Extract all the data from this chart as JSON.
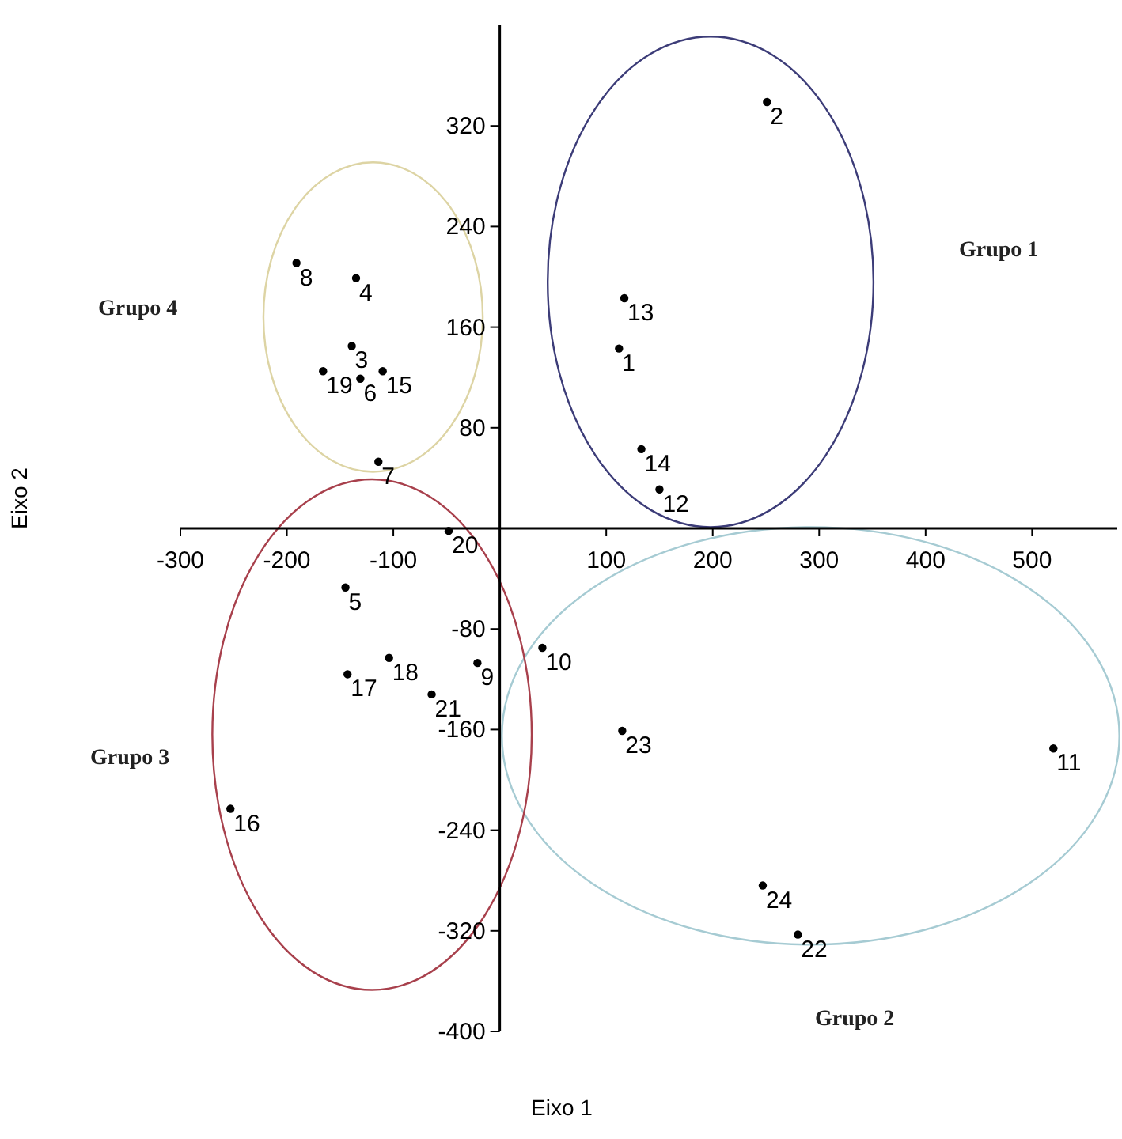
{
  "chart_data": {
    "type": "scatter",
    "xlabel": "Eixo 1",
    "xlim": [
      -300,
      580
    ],
    "xticks": [
      -300,
      -200,
      -100,
      100,
      200,
      300,
      400,
      500
    ],
    "ylim": [
      -400,
      400
    ],
    "yticks": [
      320,
      240,
      160,
      80,
      -80,
      -160,
      -240,
      -320,
      -400
    ],
    "marker": "circle",
    "grid": false,
    "annotations": [
      "Grupo 1",
      "Grupo 2",
      "Grupo 3",
      "Grupo 4",
      "Eixo 2"
    ],
    "series": [
      {
        "name": "1",
        "color": "#000000",
        "x": [
          112
        ],
        "values": [
          143
        ]
      },
      {
        "name": "2",
        "color": "#000000",
        "x": [
          251
        ],
        "values": [
          339
        ]
      },
      {
        "name": "3",
        "color": "#000000",
        "x": [
          -139
        ],
        "values": [
          145
        ]
      },
      {
        "name": "4",
        "color": "#000000",
        "x": [
          -135
        ],
        "values": [
          199
        ]
      },
      {
        "name": "5",
        "color": "#000000",
        "x": [
          -145
        ],
        "values": [
          -47
        ]
      },
      {
        "name": "6",
        "color": "#000000",
        "x": [
          -131
        ],
        "values": [
          119
        ]
      },
      {
        "name": "7",
        "color": "#000000",
        "x": [
          -114
        ],
        "values": [
          53
        ]
      },
      {
        "name": "8",
        "color": "#000000",
        "x": [
          -191
        ],
        "values": [
          211
        ]
      },
      {
        "name": "9",
        "color": "#000000",
        "x": [
          -21
        ],
        "values": [
          -107
        ]
      },
      {
        "name": "10",
        "color": "#000000",
        "x": [
          40
        ],
        "values": [
          -95
        ]
      },
      {
        "name": "11",
        "color": "#000000",
        "x": [
          520
        ],
        "values": [
          -175
        ]
      },
      {
        "name": "12",
        "color": "#000000",
        "x": [
          150
        ],
        "values": [
          31
        ]
      },
      {
        "name": "13",
        "color": "#000000",
        "x": [
          117
        ],
        "values": [
          183
        ]
      },
      {
        "name": "14",
        "color": "#000000",
        "x": [
          133
        ],
        "values": [
          63
        ]
      },
      {
        "name": "15",
        "color": "#000000",
        "x": [
          -110
        ],
        "values": [
          125
        ]
      },
      {
        "name": "16",
        "color": "#000000",
        "x": [
          -253
        ],
        "values": [
          -223
        ]
      },
      {
        "name": "17",
        "color": "#000000",
        "x": [
          -143
        ],
        "values": [
          -116
        ]
      },
      {
        "name": "18",
        "color": "#000000",
        "x": [
          -104
        ],
        "values": [
          -103
        ]
      },
      {
        "name": "19",
        "color": "#000000",
        "x": [
          -166
        ],
        "values": [
          125
        ]
      },
      {
        "name": "20",
        "color": "#000000",
        "x": [
          -48
        ],
        "values": [
          -2
        ]
      },
      {
        "name": "21",
        "color": "#000000",
        "x": [
          -64
        ],
        "values": [
          -132
        ]
      },
      {
        "name": "22",
        "color": "#000000",
        "x": [
          280
        ],
        "values": [
          -323
        ]
      },
      {
        "name": "23",
        "color": "#000000",
        "x": [
          115
        ],
        "values": [
          -161
        ]
      },
      {
        "name": "24",
        "color": "#000000",
        "x": [
          247
        ],
        "values": [
          -284
        ]
      }
    ]
  }
}
